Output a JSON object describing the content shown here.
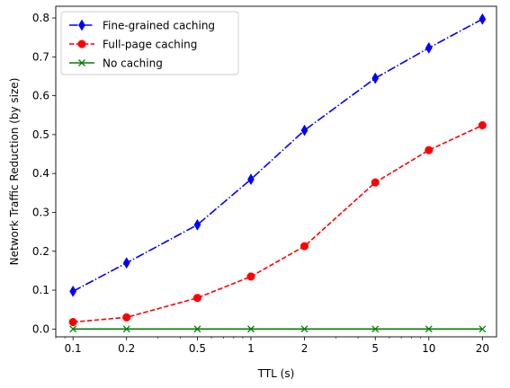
{
  "chart_data": {
    "type": "line",
    "xscale": "log",
    "xlabel": "TTL (s)",
    "ylabel": "Network Traffic Reduction (by size)",
    "x": [
      0.1,
      0.2,
      0.5,
      1,
      2,
      5,
      10,
      20
    ],
    "xtick_labels": [
      "0.1",
      "0.2",
      "0.5",
      "1",
      "2",
      "5",
      "10",
      "20"
    ],
    "xlim": [
      0.08,
      24
    ],
    "ylim": [
      -0.02,
      0.83
    ],
    "yticks": [
      0.0,
      0.1,
      0.2,
      0.3,
      0.4,
      0.5,
      0.6,
      0.7,
      0.8
    ],
    "ytick_labels": [
      "0.0",
      "0.1",
      "0.2",
      "0.3",
      "0.4",
      "0.5",
      "0.6",
      "0.7",
      "0.8"
    ],
    "grid": false,
    "legend_position": "top-left",
    "series": [
      {
        "name": "Fine-grained caching",
        "color": "#0000ff",
        "marker": "thin-diamond",
        "linestyle": "dashdot",
        "values": [
          0.097,
          0.17,
          0.268,
          0.385,
          0.511,
          0.645,
          0.723,
          0.797
        ]
      },
      {
        "name": "Full-page caching",
        "color": "#ff0000",
        "marker": "circle",
        "linestyle": "dashed",
        "values": [
          0.018,
          0.03,
          0.08,
          0.135,
          0.213,
          0.377,
          0.46,
          0.524
        ]
      },
      {
        "name": "No caching",
        "color": "#008000",
        "marker": "x",
        "linestyle": "solid",
        "values": [
          0.0,
          0.0,
          0.0,
          0.0,
          0.0,
          0.0,
          0.0,
          0.0
        ]
      }
    ]
  }
}
